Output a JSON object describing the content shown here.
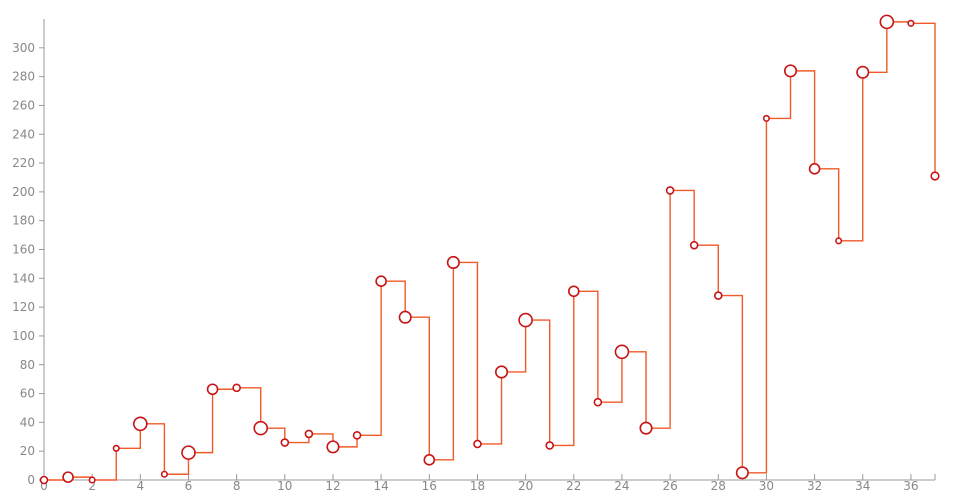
{
  "chart_data": {
    "type": "line",
    "style": "step-after",
    "title": "",
    "xlabel": "",
    "ylabel": "",
    "xlim": [
      0,
      37
    ],
    "ylim": [
      0,
      320
    ],
    "grid": false,
    "x_ticks": [
      0,
      2,
      4,
      6,
      8,
      10,
      12,
      14,
      16,
      18,
      20,
      22,
      24,
      26,
      28,
      30,
      32,
      34,
      36
    ],
    "y_ticks": [
      0,
      20,
      40,
      60,
      80,
      100,
      120,
      140,
      160,
      180,
      200,
      220,
      240,
      260,
      280,
      300
    ],
    "line_color": "#f05a28",
    "marker_stroke": "#c81414",
    "marker_fill": "#ffffff",
    "series": [
      {
        "x": [
          0,
          1,
          2,
          3,
          4,
          5,
          6,
          7,
          8,
          9,
          10,
          11,
          12,
          13,
          14,
          15,
          16,
          17,
          18,
          19,
          20,
          21,
          22,
          23,
          24,
          25,
          26,
          27,
          28,
          29,
          30,
          31,
          32,
          33,
          34,
          35,
          36,
          37
        ],
        "values": [
          0,
          2,
          0,
          22,
          39,
          4,
          19,
          63,
          64,
          36,
          26,
          32,
          23,
          31,
          138,
          113,
          14,
          151,
          25,
          75,
          111,
          24,
          131,
          54,
          89,
          36,
          201,
          163,
          128,
          5,
          251,
          284,
          216,
          166,
          283,
          318,
          317,
          211
        ],
        "marker_sizes": [
          1,
          2,
          0.5,
          0.5,
          3,
          0.5,
          3,
          2,
          1,
          3,
          1,
          1,
          2.5,
          1,
          2,
          2.5,
          2,
          2.5,
          1,
          2.5,
          3,
          1,
          2,
          1,
          3,
          2.5,
          1,
          1,
          1,
          2.5,
          0.5,
          2.5,
          2,
          0.5,
          2.5,
          3,
          0.5,
          1.2
        ]
      }
    ]
  }
}
